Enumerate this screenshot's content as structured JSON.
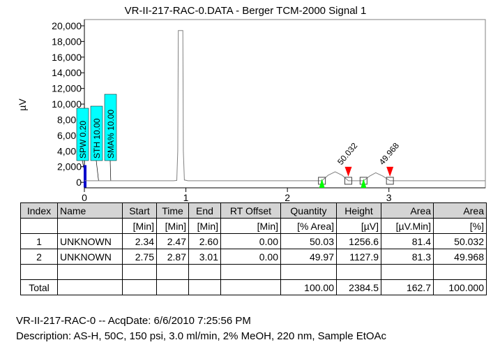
{
  "chart_data": {
    "type": "line",
    "title": "VR-II-217-RAC-0.DATA - Berger TCM-2000 Signal 1",
    "ylabel": "µV",
    "xlabel": "",
    "xlim": [
      0,
      3.95
    ],
    "ylim": [
      -700,
      20800
    ],
    "xticks": [
      0,
      1,
      2,
      3
    ],
    "yticks": [
      0,
      2000,
      4000,
      6000,
      8000,
      10000,
      12000,
      14000,
      16000,
      18000,
      20000
    ],
    "ytick_labels": [
      "0",
      "2,000",
      "4,000",
      "6,000",
      "8,000",
      "10,000",
      "12,000",
      "14,000",
      "16,000",
      "18,000",
      "20,000"
    ],
    "series": [
      {
        "values_note": "",
        "x": [
          0,
          0.88,
          0.91,
          0.92,
          0.925,
          0.97,
          0.975,
          0.985,
          1.02,
          2.34,
          2.4,
          2.47,
          2.54,
          2.6,
          2.75,
          2.81,
          2.87,
          2.94,
          3.01,
          3.95
        ],
        "y": [
          200,
          200,
          250,
          4000,
          19400,
          19400,
          4000,
          300,
          200,
          200,
          900,
          1350,
          900,
          200,
          200,
          800,
          1230,
          800,
          200,
          200
        ]
      }
    ],
    "peaks": [
      {
        "x": 2.6,
        "y": 200,
        "label": "50.032"
      },
      {
        "x": 3.01,
        "y": 200,
        "label": "49.968"
      }
    ],
    "baseline_markers": [
      {
        "x": 2.34,
        "y": 200
      },
      {
        "x": 2.6,
        "y": 200
      },
      {
        "x": 2.75,
        "y": 200
      },
      {
        "x": 3.01,
        "y": 200
      }
    ],
    "start_markers": [
      2.34,
      2.75
    ],
    "end_markers": [
      2.6,
      3.01
    ],
    "parameters": [
      {
        "label": "SPW 0.20",
        "x": 0.02
      },
      {
        "label": "STH 10.00",
        "x": 0.14
      },
      {
        "label": "SMA% 10.00",
        "x": 0.26
      }
    ],
    "colors": {
      "trace": "#808080",
      "param_box": "#00ffff",
      "start_marker": "#00ff00",
      "end_marker": "#ff0000",
      "event_bar": "#0000cc"
    }
  },
  "table": {
    "headers": [
      "Index",
      "Name",
      "Start",
      "Time",
      "End",
      "RT Offset",
      "Quantity",
      "Height",
      "Area",
      "Area"
    ],
    "units": [
      "",
      "",
      "[Min]",
      "[Min]",
      "[Min]",
      "[Min]",
      "[% Area]",
      "[µV]",
      "[µV.Min]",
      "[%]"
    ],
    "rows": [
      [
        "1",
        "UNKNOWN",
        "2.34",
        "2.47",
        "2.60",
        "0.00",
        "50.03",
        "1256.6",
        "81.4",
        "50.032"
      ],
      [
        "2",
        "UNKNOWN",
        "2.75",
        "2.87",
        "3.01",
        "0.00",
        "49.97",
        "1127.9",
        "81.3",
        "49.968"
      ]
    ],
    "total": [
      "Total",
      "",
      "",
      "",
      "",
      "",
      "100.00",
      "2384.5",
      "162.7",
      "100.000"
    ]
  },
  "footer": {
    "line1": "VR-II-217-RAC-0 -- AcqDate: 6/6/2010 7:25:56 PM",
    "line2": "Description: AS-H, 50C, 150 psi, 3.0 ml/min, 2% MeOH, 220 nm, Sample EtOAc"
  }
}
